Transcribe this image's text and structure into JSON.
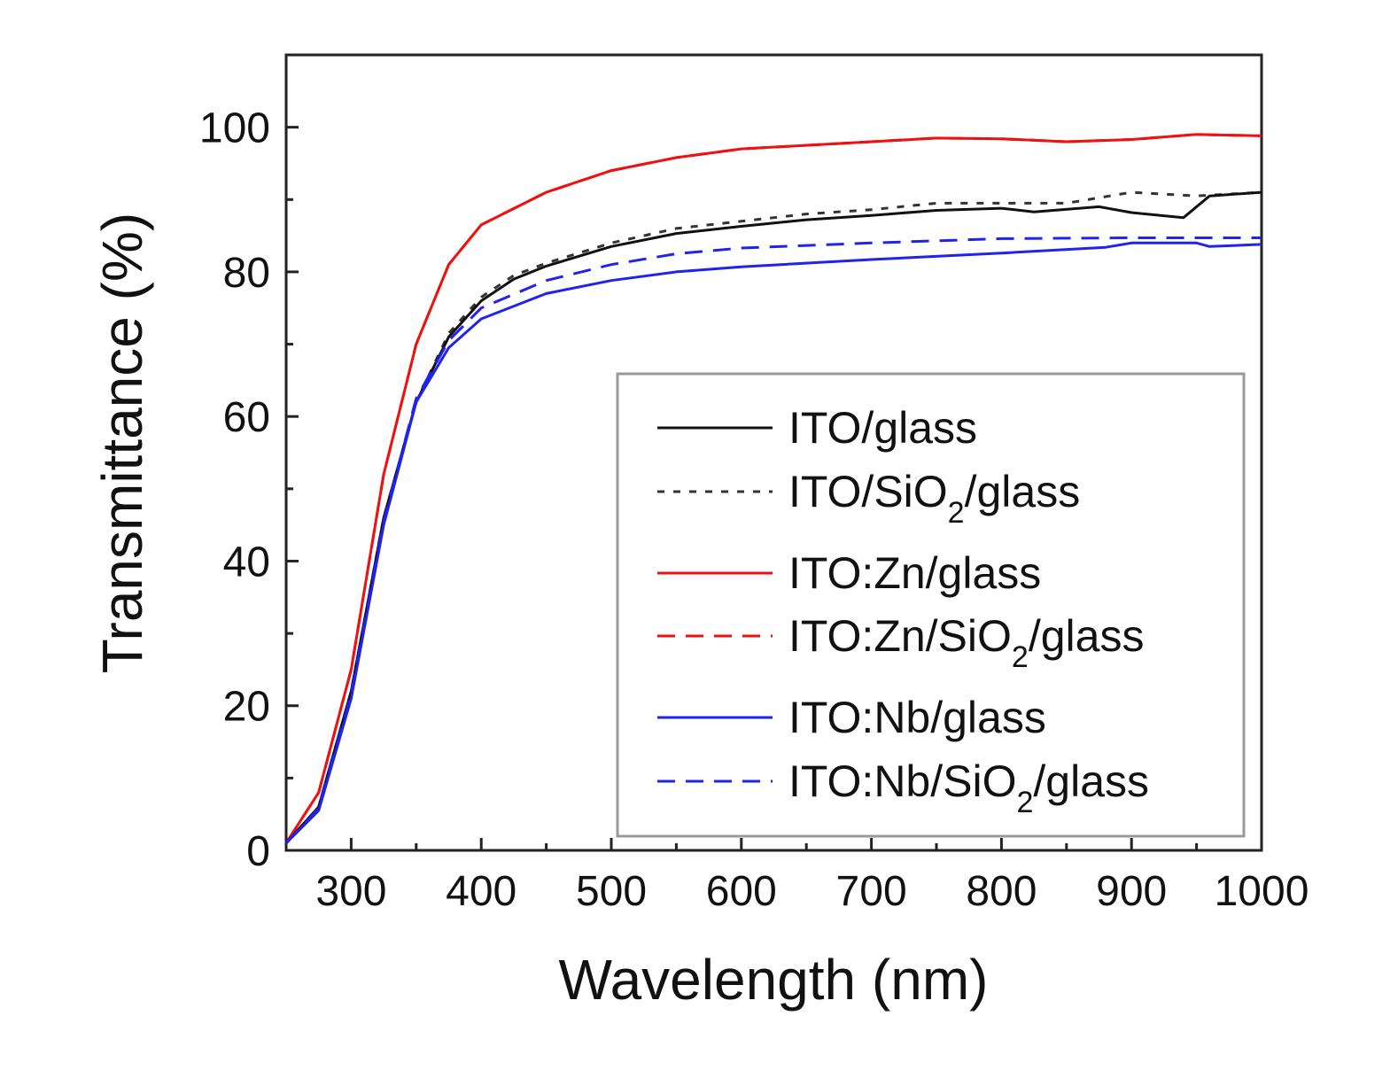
{
  "chart_data": {
    "type": "line",
    "title": "",
    "xlabel": "Wavelength (nm)",
    "ylabel": "Transmittance (%)",
    "xlim": [
      250,
      1000
    ],
    "ylim": [
      0,
      110
    ],
    "xticks": [
      300,
      400,
      500,
      600,
      700,
      800,
      900,
      1000
    ],
    "yticks": [
      0,
      20,
      40,
      60,
      80,
      100
    ],
    "grid": false,
    "legend_position": "bottom-right",
    "series": [
      {
        "name": "ITO/glass",
        "label_parts": [
          "ITO/glass",
          "",
          ""
        ],
        "color": "#111111",
        "dash": "solid",
        "x": [
          250,
          275,
          300,
          325,
          350,
          375,
          400,
          425,
          450,
          500,
          550,
          600,
          650,
          700,
          750,
          800,
          825,
          875,
          900,
          940,
          960,
          1000
        ],
        "y": [
          1,
          6,
          22,
          46,
          62,
          71,
          76,
          79,
          80.8,
          83.5,
          85.3,
          86.3,
          87.2,
          87.8,
          88.5,
          88.8,
          88.3,
          89,
          88.2,
          87.5,
          90.5,
          91
        ]
      },
      {
        "name": "ITO/SiO2/glass",
        "label_parts": [
          "ITO/SiO",
          "2",
          "/glass"
        ],
        "color": "#333333",
        "dash": "dotted",
        "x": [
          250,
          275,
          300,
          325,
          350,
          375,
          400,
          425,
          450,
          500,
          550,
          600,
          650,
          700,
          750,
          800,
          850,
          900,
          950,
          1000
        ],
        "y": [
          1,
          6,
          22,
          46,
          62,
          71.5,
          76.5,
          79.5,
          81.2,
          84,
          86,
          87,
          88,
          88.6,
          89.5,
          89.5,
          89.5,
          91,
          90.5,
          91
        ]
      },
      {
        "name": "ITO:Zn/glass",
        "label_parts": [
          "ITO:Zn/glass",
          "",
          ""
        ],
        "color": "#ee1111",
        "dash": "solid",
        "x": [
          250,
          275,
          300,
          325,
          350,
          375,
          400,
          450,
          500,
          550,
          600,
          700,
          750,
          800,
          850,
          900,
          950,
          1000
        ],
        "y": [
          1,
          8,
          25,
          52,
          70,
          81,
          86.5,
          91,
          94,
          95.8,
          97,
          98,
          98.5,
          98.4,
          98,
          98.3,
          99,
          98.8
        ]
      },
      {
        "name": "ITO:Zn/SiO2/glass",
        "label_parts": [
          "ITO:Zn/SiO",
          "2",
          "/glass"
        ],
        "color": "#ee1111",
        "dash": "dashed",
        "x": [
          250,
          275,
          300,
          325,
          350,
          375,
          400,
          450,
          500,
          550,
          600,
          700,
          750,
          800,
          850,
          900,
          950,
          1000
        ],
        "y": [
          1,
          8,
          25,
          52,
          70,
          81,
          86.5,
          91,
          94,
          95.8,
          97,
          98,
          98.5,
          98.4,
          98,
          98.3,
          99,
          98.8
        ]
      },
      {
        "name": "ITO:Nb/glass",
        "label_parts": [
          "ITO:Nb/glass",
          "",
          ""
        ],
        "color": "#2222ee",
        "dash": "solid",
        "x": [
          250,
          275,
          300,
          325,
          350,
          375,
          400,
          450,
          500,
          550,
          600,
          700,
          800,
          880,
          900,
          950,
          960,
          1000
        ],
        "y": [
          1,
          5.5,
          21,
          45,
          62,
          69.5,
          73.5,
          77,
          78.8,
          80,
          80.7,
          81.7,
          82.6,
          83.4,
          84,
          84,
          83.5,
          83.8
        ]
      },
      {
        "name": "ITO:Nb/SiO2/glass",
        "label_parts": [
          "ITO:Nb/SiO",
          "2",
          "/glass"
        ],
        "color": "#2222ee",
        "dash": "dashed",
        "x": [
          250,
          275,
          300,
          325,
          350,
          375,
          400,
          450,
          500,
          550,
          600,
          700,
          800,
          900,
          1000
        ],
        "y": [
          1,
          5.8,
          21.5,
          45.5,
          62.5,
          70.5,
          75,
          78.8,
          81,
          82.5,
          83.3,
          84,
          84.6,
          84.7,
          84.7
        ]
      }
    ]
  }
}
